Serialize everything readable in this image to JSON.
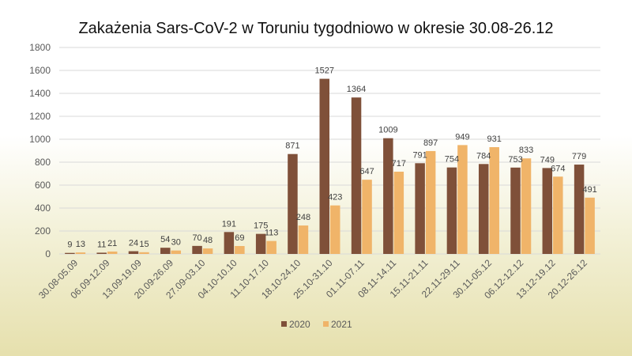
{
  "chart_data": {
    "type": "bar",
    "title": "Zakażenia Sars-CoV-2 w Toruniu tygodniowo w okresie 30.08-26.12",
    "xlabel": "",
    "ylabel": "",
    "ylim": [
      0,
      1800
    ],
    "yticks": [
      0,
      200,
      400,
      600,
      800,
      1000,
      1200,
      1400,
      1600,
      1800
    ],
    "grid": true,
    "legend_position": "bottom",
    "categories": [
      "30.08-05.09",
      "06.09-12.09",
      "13.09-19.09",
      "20.09-26.09",
      "27.09-03.10",
      "04.10-10.10",
      "11.10-17.10",
      "18.10-24.10",
      "25.10-31.10",
      "01.11-07.11",
      "08.11-14.11",
      "15.11-21.11",
      "22.11-29.11",
      "30.11-05.12",
      "06.12-12.12",
      "13.12-19.12",
      "20.12-26.12"
    ],
    "series": [
      {
        "name": "2020",
        "color": "#7f5039",
        "values": [
          9,
          11,
          24,
          54,
          70,
          191,
          175,
          871,
          1527,
          1364,
          1009,
          791,
          754,
          784,
          753,
          749,
          779
        ]
      },
      {
        "name": "2021",
        "color": "#f0b469",
        "values": [
          13,
          21,
          15,
          30,
          48,
          69,
          113,
          248,
          423,
          647,
          717,
          897,
          949,
          931,
          833,
          674,
          491
        ]
      }
    ]
  }
}
